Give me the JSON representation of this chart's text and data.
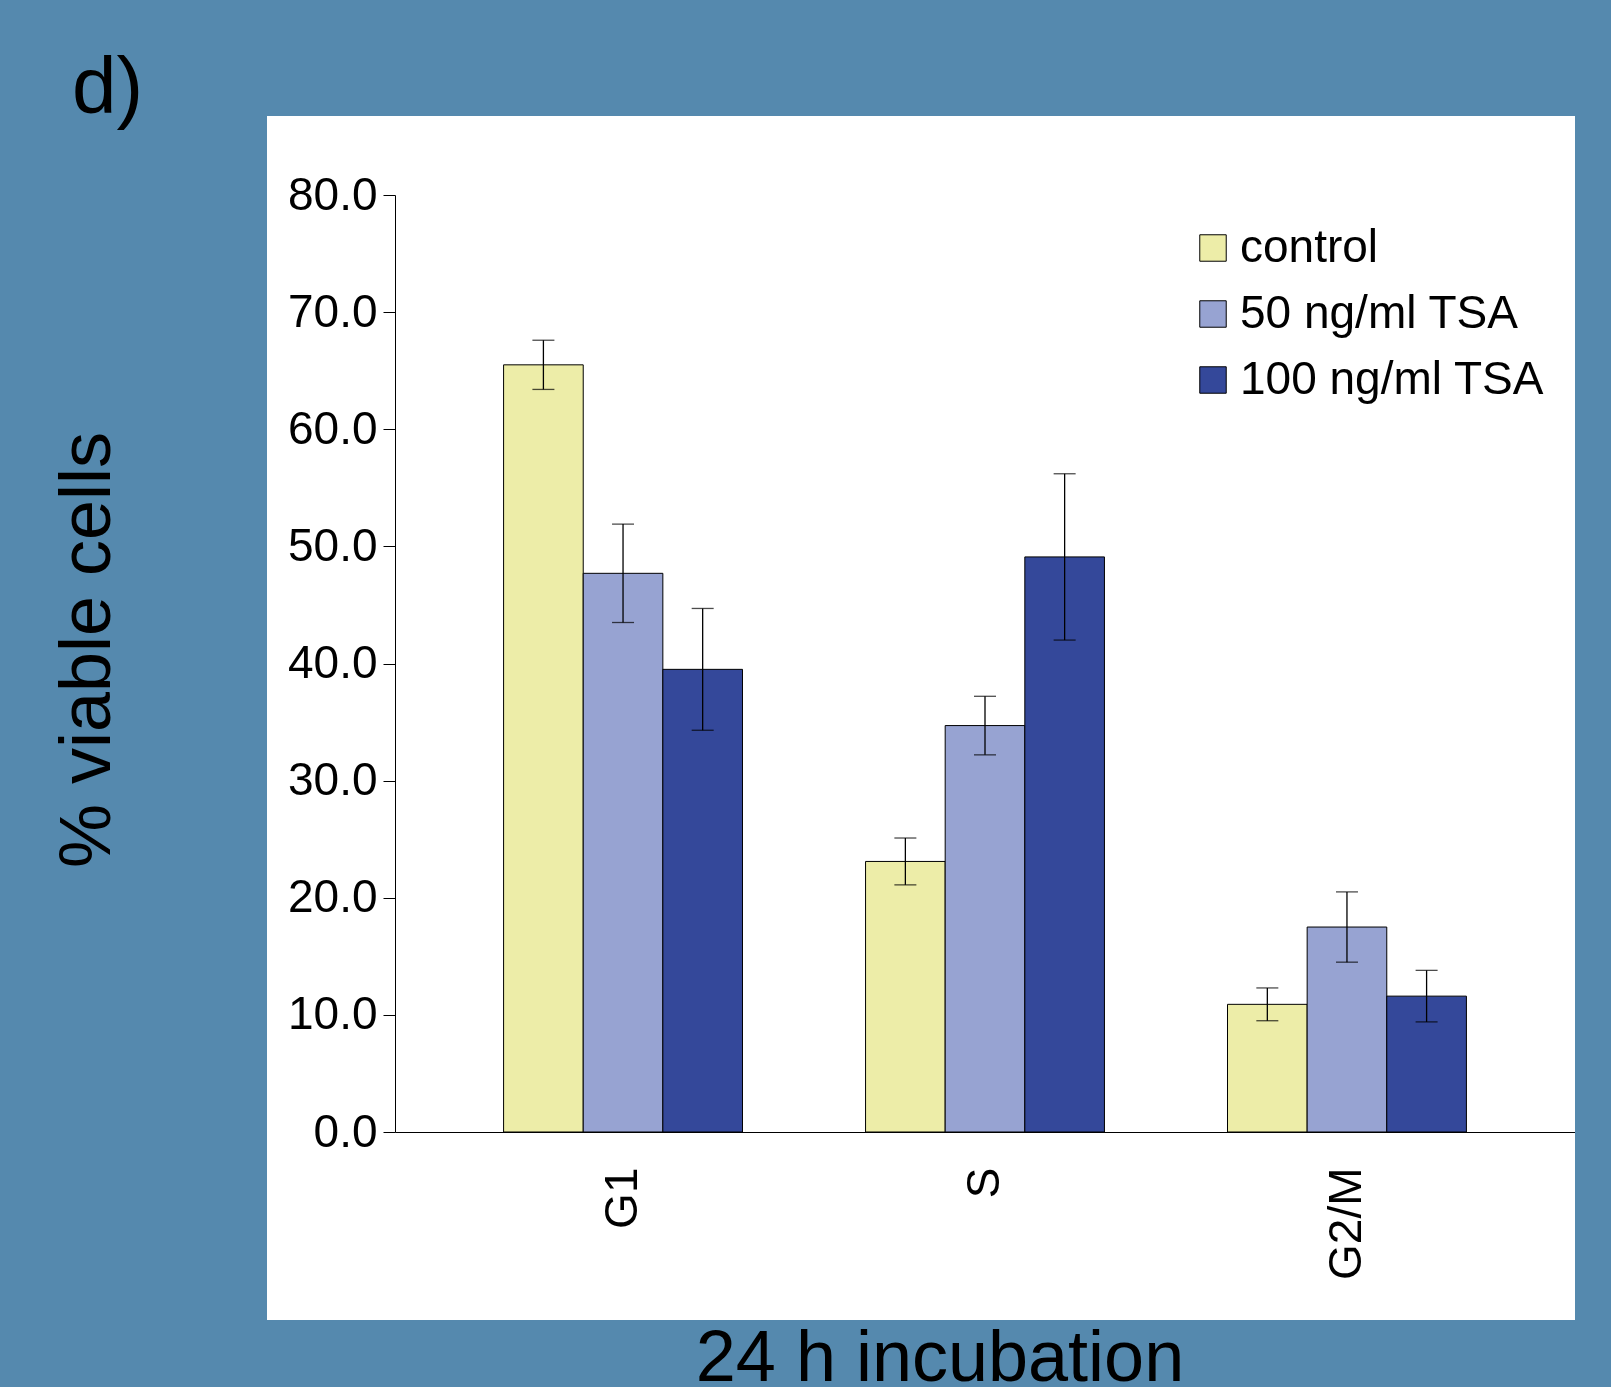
{
  "chart_data": {
    "type": "bar",
    "xlabel": "24 h incubation",
    "ylabel": "% viable cells",
    "annotations": [
      "d)"
    ],
    "categories": [
      "G1",
      "S",
      "G2/M"
    ],
    "series": [
      {
        "name": "control",
        "color": "#ededa8",
        "values": [
          65.5,
          23.1,
          10.9
        ],
        "errors": [
          2.1,
          2.0,
          1.4
        ]
      },
      {
        "name": "50 ng/ml TSA",
        "color": "#97a3d2",
        "values": [
          47.7,
          34.7,
          17.5
        ],
        "errors": [
          4.2,
          2.5,
          3.0
        ]
      },
      {
        "name": "100 ng/ml TSA",
        "color": "#34489a",
        "values": [
          39.5,
          49.1,
          11.6
        ],
        "errors": [
          5.2,
          7.1,
          2.2
        ]
      }
    ],
    "ylim": [
      0,
      80
    ],
    "yticks": [
      {
        "value": 0,
        "label": "0.0"
      },
      {
        "value": 10,
        "label": "10.0"
      },
      {
        "value": 20,
        "label": "20.0"
      },
      {
        "value": 30,
        "label": "30.0"
      },
      {
        "value": 40,
        "label": "40.0"
      },
      {
        "value": 50,
        "label": "50.0"
      },
      {
        "value": 60,
        "label": "60.0"
      },
      {
        "value": 70,
        "label": "70.0"
      },
      {
        "value": 80,
        "label": "80.0"
      }
    ],
    "grid": false,
    "legend": "top right"
  }
}
